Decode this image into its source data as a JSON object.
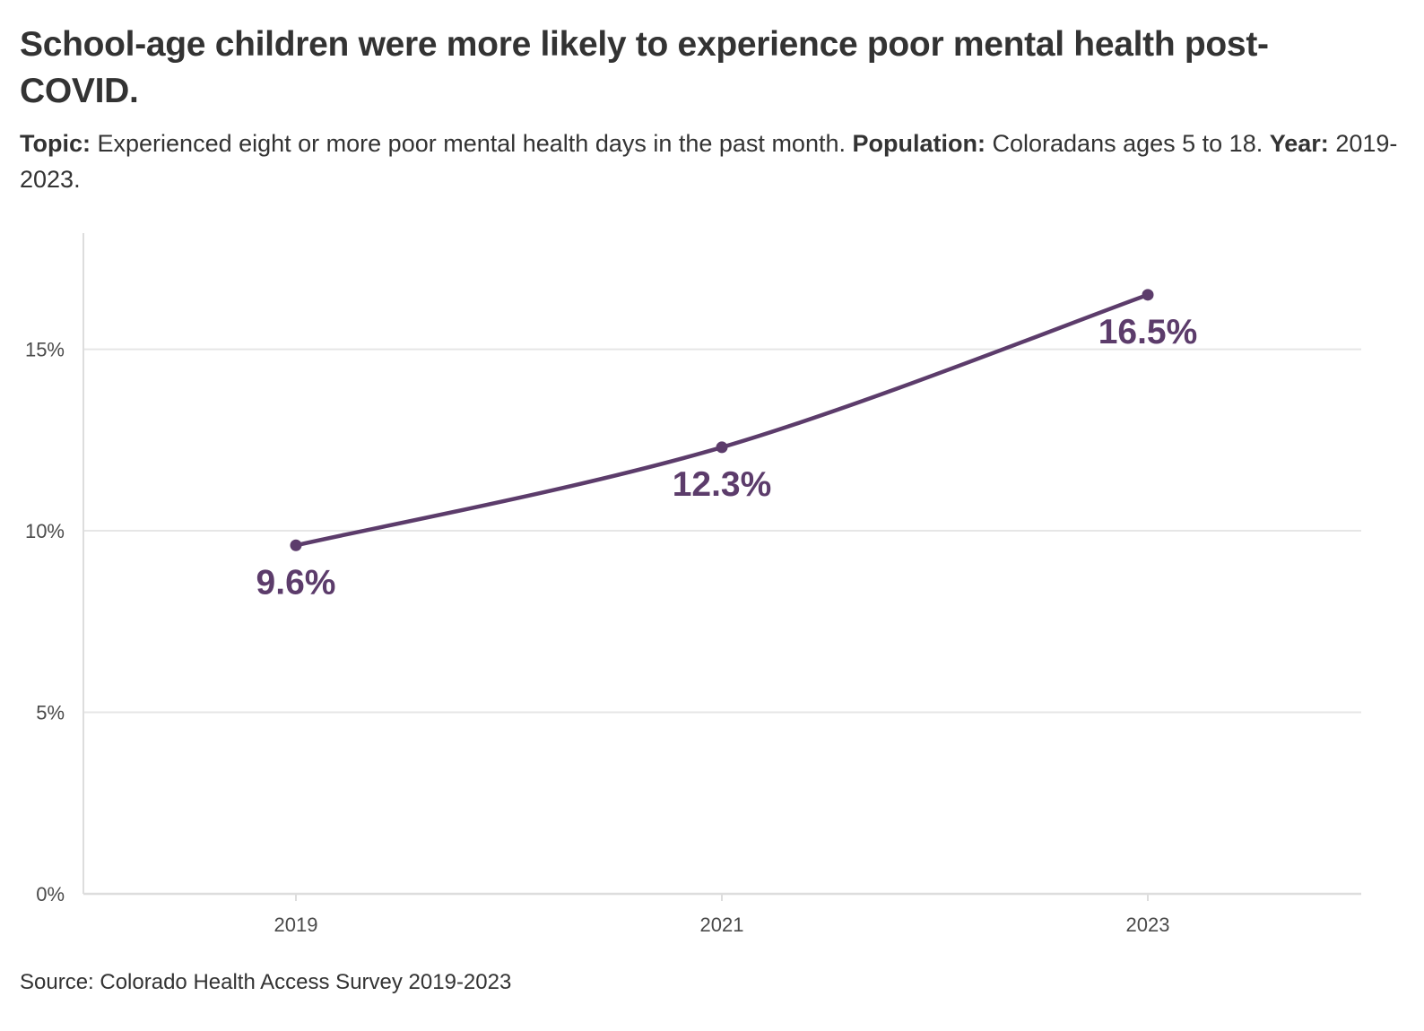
{
  "header": {
    "title": "School-age children were more likely to experience poor mental health post-COVID.",
    "topic_label": "Topic:",
    "topic_text": "Experienced eight or more poor mental health days in the past month.",
    "population_label": "Population:",
    "population_text": "Coloradans ages 5 to 18.",
    "year_label": "Year:",
    "year_text": "2019-2023."
  },
  "footer": {
    "source": "Source: Colorado Health Access Survey 2019-2023"
  },
  "colors": {
    "series": "#5c3c6b",
    "grid": "#e6e6e6",
    "axis": "#dddddd"
  },
  "chart_data": {
    "type": "line",
    "title": "School-age children were more likely to experience poor mental health post-COVID.",
    "x": [
      "2019",
      "2021",
      "2023"
    ],
    "series": [
      {
        "values": [
          9.6,
          12.3,
          16.5
        ],
        "labels": [
          "9.6%",
          "12.3%",
          "16.5%"
        ]
      }
    ],
    "yticks": [
      0,
      5,
      10,
      15
    ],
    "ytick_labels": [
      "0%",
      "5%",
      "10%",
      "15%"
    ],
    "ylim": [
      0,
      18.2
    ],
    "xlabel": "",
    "ylabel": "",
    "grid": true,
    "legend": "none"
  }
}
